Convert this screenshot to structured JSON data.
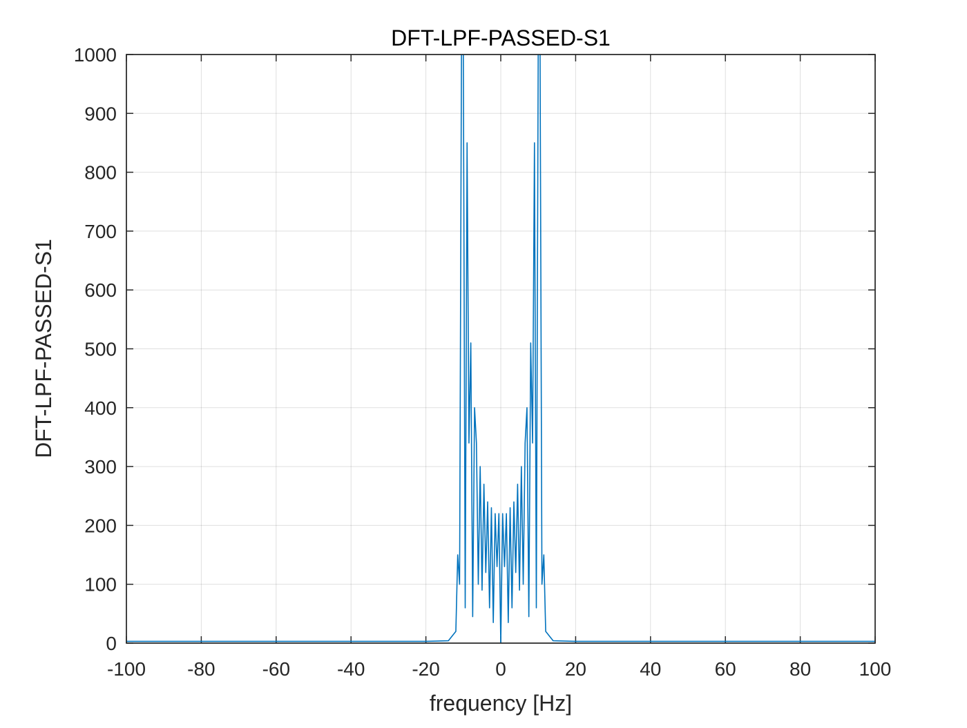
{
  "chart_data": {
    "type": "line",
    "title": "DFT-LPF-PASSED-S1",
    "xlabel": "frequency [Hz]",
    "ylabel": "DFT-LPF-PASSED-S1",
    "xlim": [
      -100,
      100
    ],
    "ylim": [
      0,
      1000
    ],
    "x_ticks": [
      -100,
      -80,
      -60,
      -40,
      -20,
      0,
      20,
      40,
      60,
      80,
      100
    ],
    "y_ticks": [
      0,
      100,
      200,
      300,
      400,
      500,
      600,
      700,
      800,
      900,
      1000
    ],
    "grid": true,
    "legend": "none",
    "series": [
      {
        "color": "#0072BD",
        "x": [
          -100,
          -20,
          -14,
          -12,
          -11.5,
          -11,
          -10.5,
          -10,
          -9.5,
          -9,
          -8.5,
          -8,
          -7.5,
          -7,
          -6.5,
          -6,
          -5.5,
          -5,
          -4.5,
          -4,
          -3.5,
          -3,
          -2.5,
          -2,
          -1.5,
          -1,
          -0.5,
          0,
          0.5,
          1,
          1.5,
          2,
          2.5,
          3,
          3.5,
          4,
          4.5,
          5,
          5.5,
          6,
          6.5,
          7,
          7.5,
          8,
          8.5,
          9,
          9.5,
          10,
          10.5,
          11,
          11.5,
          12,
          14,
          20,
          100
        ],
        "y": [
          3,
          3,
          4,
          20,
          150,
          100,
          1000,
          1000,
          60,
          850,
          340,
          510,
          45,
          400,
          340,
          100,
          300,
          90,
          270,
          120,
          240,
          60,
          230,
          35,
          220,
          130,
          220,
          0,
          220,
          130,
          220,
          35,
          230,
          60,
          240,
          120,
          270,
          90,
          300,
          100,
          340,
          400,
          45,
          510,
          340,
          850,
          60,
          1000,
          1000,
          100,
          150,
          20,
          4,
          3,
          3
        ]
      }
    ]
  }
}
